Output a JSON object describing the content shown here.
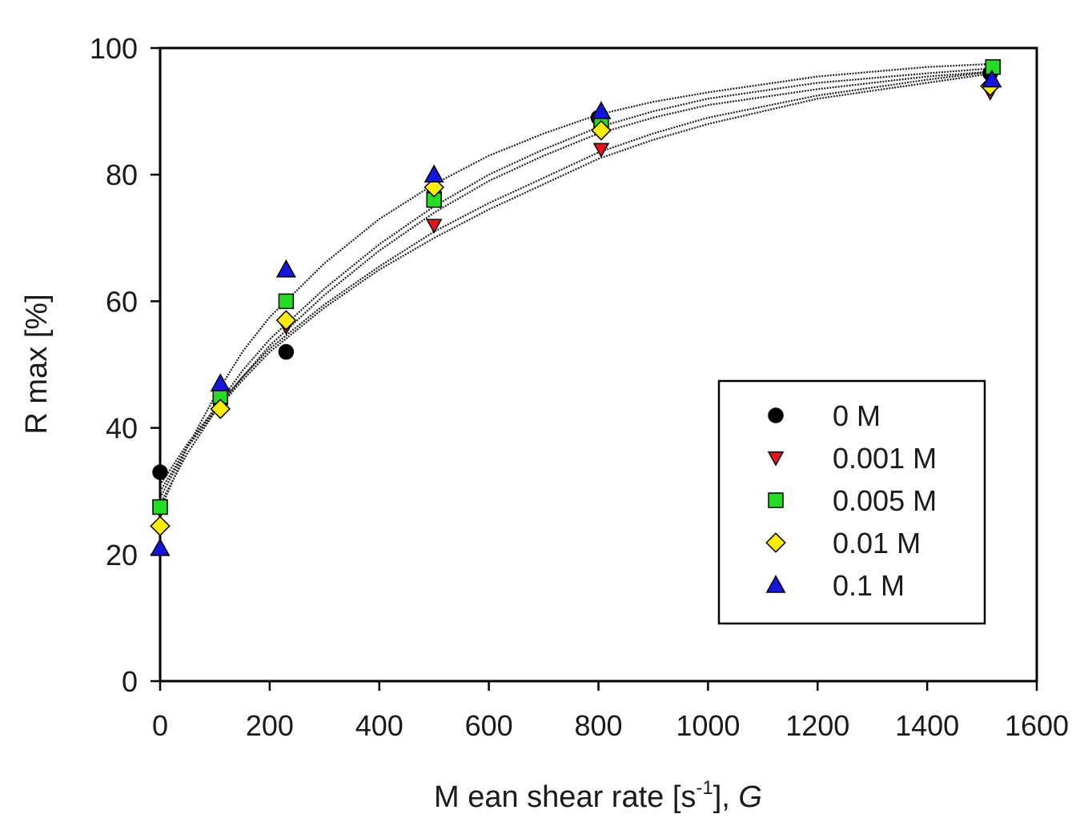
{
  "chart_data": {
    "type": "scatter",
    "title": "",
    "xlabel_main": "M ean shear rate  [s",
    "xlabel_sup": "-1",
    "xlabel_tail": "], ",
    "xlabel_var": "G",
    "ylabel": "R max  [%]",
    "xlim": [
      0,
      1600
    ],
    "ylim": [
      0,
      100
    ],
    "x_ticks": [
      "0",
      "200",
      "400",
      "600",
      "800",
      "1000",
      "1200",
      "1400",
      "1600"
    ],
    "y_ticks": [
      "0",
      "20",
      "40",
      "60",
      "80",
      "100"
    ],
    "grid": false,
    "legend_position": "right-center",
    "series": [
      {
        "name": "0 M",
        "marker": "circle",
        "color": "#000000",
        "x": [
          0,
          110,
          230,
          500,
          800,
          1515
        ],
        "y": [
          33,
          44,
          52,
          77,
          89,
          96
        ],
        "fit": [
          [
            0,
            31
          ],
          [
            50,
            37.5
          ],
          [
            100,
            43
          ],
          [
            150,
            48
          ],
          [
            200,
            52.5
          ],
          [
            300,
            59.5
          ],
          [
            400,
            65.5
          ],
          [
            500,
            71
          ],
          [
            600,
            75.5
          ],
          [
            700,
            79.5
          ],
          [
            800,
            83.5
          ],
          [
            900,
            86.5
          ],
          [
            1000,
            89
          ],
          [
            1200,
            92.5
          ],
          [
            1400,
            95
          ],
          [
            1520,
            96.3
          ]
        ]
      },
      {
        "name": "0.001 M",
        "marker": "triangle-down",
        "color": "#e8141c",
        "x": [
          0,
          110,
          230,
          500,
          805,
          1515
        ],
        "y": [
          27,
          44,
          56,
          72,
          84,
          93
        ],
        "fit": [
          [
            0,
            30
          ],
          [
            50,
            37
          ],
          [
            100,
            42.5
          ],
          [
            150,
            47.5
          ],
          [
            200,
            52
          ],
          [
            300,
            59
          ],
          [
            400,
            65
          ],
          [
            500,
            70
          ],
          [
            600,
            74.5
          ],
          [
            700,
            78.5
          ],
          [
            800,
            82.5
          ],
          [
            900,
            85.5
          ],
          [
            1000,
            88
          ],
          [
            1200,
            92
          ],
          [
            1400,
            94.5
          ],
          [
            1520,
            96
          ]
        ]
      },
      {
        "name": "0.005 M",
        "marker": "square",
        "color": "#22dd22",
        "x": [
          0,
          110,
          230,
          500,
          805,
          1520
        ],
        "y": [
          27.5,
          45,
          60,
          76,
          88,
          97
        ],
        "fit": [
          [
            0,
            29
          ],
          [
            50,
            37
          ],
          [
            100,
            43
          ],
          [
            150,
            49
          ],
          [
            200,
            54
          ],
          [
            300,
            62
          ],
          [
            400,
            69
          ],
          [
            500,
            75
          ],
          [
            600,
            80
          ],
          [
            700,
            84
          ],
          [
            800,
            87.5
          ],
          [
            900,
            90
          ],
          [
            1000,
            92
          ],
          [
            1200,
            94.5
          ],
          [
            1400,
            96
          ],
          [
            1520,
            96.8
          ]
        ]
      },
      {
        "name": "0.01 M",
        "marker": "diamond",
        "color": "#ffee00",
        "x": [
          0,
          110,
          230,
          500,
          805,
          1515
        ],
        "y": [
          24.5,
          43,
          57,
          78,
          87,
          94
        ],
        "fit": [
          [
            0,
            28
          ],
          [
            50,
            36
          ],
          [
            100,
            42.5
          ],
          [
            150,
            48
          ],
          [
            200,
            53
          ],
          [
            300,
            61
          ],
          [
            400,
            68
          ],
          [
            500,
            74
          ],
          [
            600,
            79
          ],
          [
            700,
            83
          ],
          [
            800,
            86.5
          ],
          [
            900,
            89
          ],
          [
            1000,
            91
          ],
          [
            1200,
            93.5
          ],
          [
            1400,
            95.5
          ],
          [
            1520,
            96.3
          ]
        ]
      },
      {
        "name": "0.1 M",
        "marker": "triangle-up",
        "color": "#1515e0",
        "x": [
          0,
          110,
          230,
          500,
          805,
          1518
        ],
        "y": [
          21,
          47,
          65,
          80,
          90,
          95
        ],
        "fit": [
          [
            0,
            27
          ],
          [
            50,
            37
          ],
          [
            100,
            45
          ],
          [
            150,
            52
          ],
          [
            200,
            57.5
          ],
          [
            300,
            66
          ],
          [
            400,
            73
          ],
          [
            500,
            78.5
          ],
          [
            600,
            83
          ],
          [
            700,
            86.5
          ],
          [
            800,
            89.5
          ],
          [
            900,
            91.5
          ],
          [
            1000,
            93
          ],
          [
            1200,
            95.5
          ],
          [
            1400,
            97
          ],
          [
            1520,
            97.5
          ]
        ]
      }
    ]
  }
}
